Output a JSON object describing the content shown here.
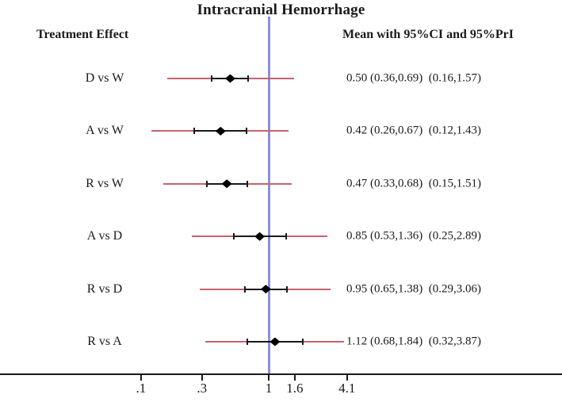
{
  "chart_data": {
    "type": "forest",
    "title": "Intracranial Hemorrhage",
    "column_headers": {
      "left": "Treatment Effect",
      "right": "Mean with 95%CI and 95%PrI"
    },
    "x_scale": "log",
    "x_ticks": [
      0.1,
      0.3,
      1,
      1.6,
      4.1
    ],
    "x_tick_labels": [
      ".1",
      ".3",
      "1",
      "1.6",
      "4.1"
    ],
    "x_tick_range": [
      0.1,
      4.1
    ],
    "reference_line": 1,
    "axis_line_spans_full_width": true,
    "grid": false,
    "rows": [
      {
        "label": "D vs W",
        "mean": 0.5,
        "ci": [
          0.36,
          0.69
        ],
        "pri": [
          0.16,
          1.57
        ],
        "text": "0.50 (0.36,0.69)  (0.16,1.57)"
      },
      {
        "label": "A vs W",
        "mean": 0.42,
        "ci": [
          0.26,
          0.67
        ],
        "pri": [
          0.12,
          1.43
        ],
        "text": "0.42 (0.26,0.67)  (0.12,1.43)"
      },
      {
        "label": "R vs W",
        "mean": 0.47,
        "ci": [
          0.33,
          0.68
        ],
        "pri": [
          0.15,
          1.51
        ],
        "text": "0.47 (0.33,0.68)  (0.15,1.51)"
      },
      {
        "label": "A vs D",
        "mean": 0.85,
        "ci": [
          0.53,
          1.36
        ],
        "pri": [
          0.25,
          2.89
        ],
        "text": "0.85 (0.53,1.36)  (0.25,2.89)"
      },
      {
        "label": "R vs D",
        "mean": 0.95,
        "ci": [
          0.65,
          1.38
        ],
        "pri": [
          0.29,
          3.06
        ],
        "text": "0.95 (0.65,1.38)  (0.29,3.06)"
      },
      {
        "label": "R vs A",
        "mean": 1.12,
        "ci": [
          0.68,
          1.84
        ],
        "pri": [
          0.32,
          3.87
        ],
        "text": "1.12 (0.68,1.84)  (0.32,3.87)"
      }
    ],
    "colors": {
      "ci_line": "#1a1a1a",
      "pri_line": "#c4646c",
      "reference_line": "#8f8fd8",
      "marker": "#000000",
      "axis": "#1a1a1a"
    }
  }
}
